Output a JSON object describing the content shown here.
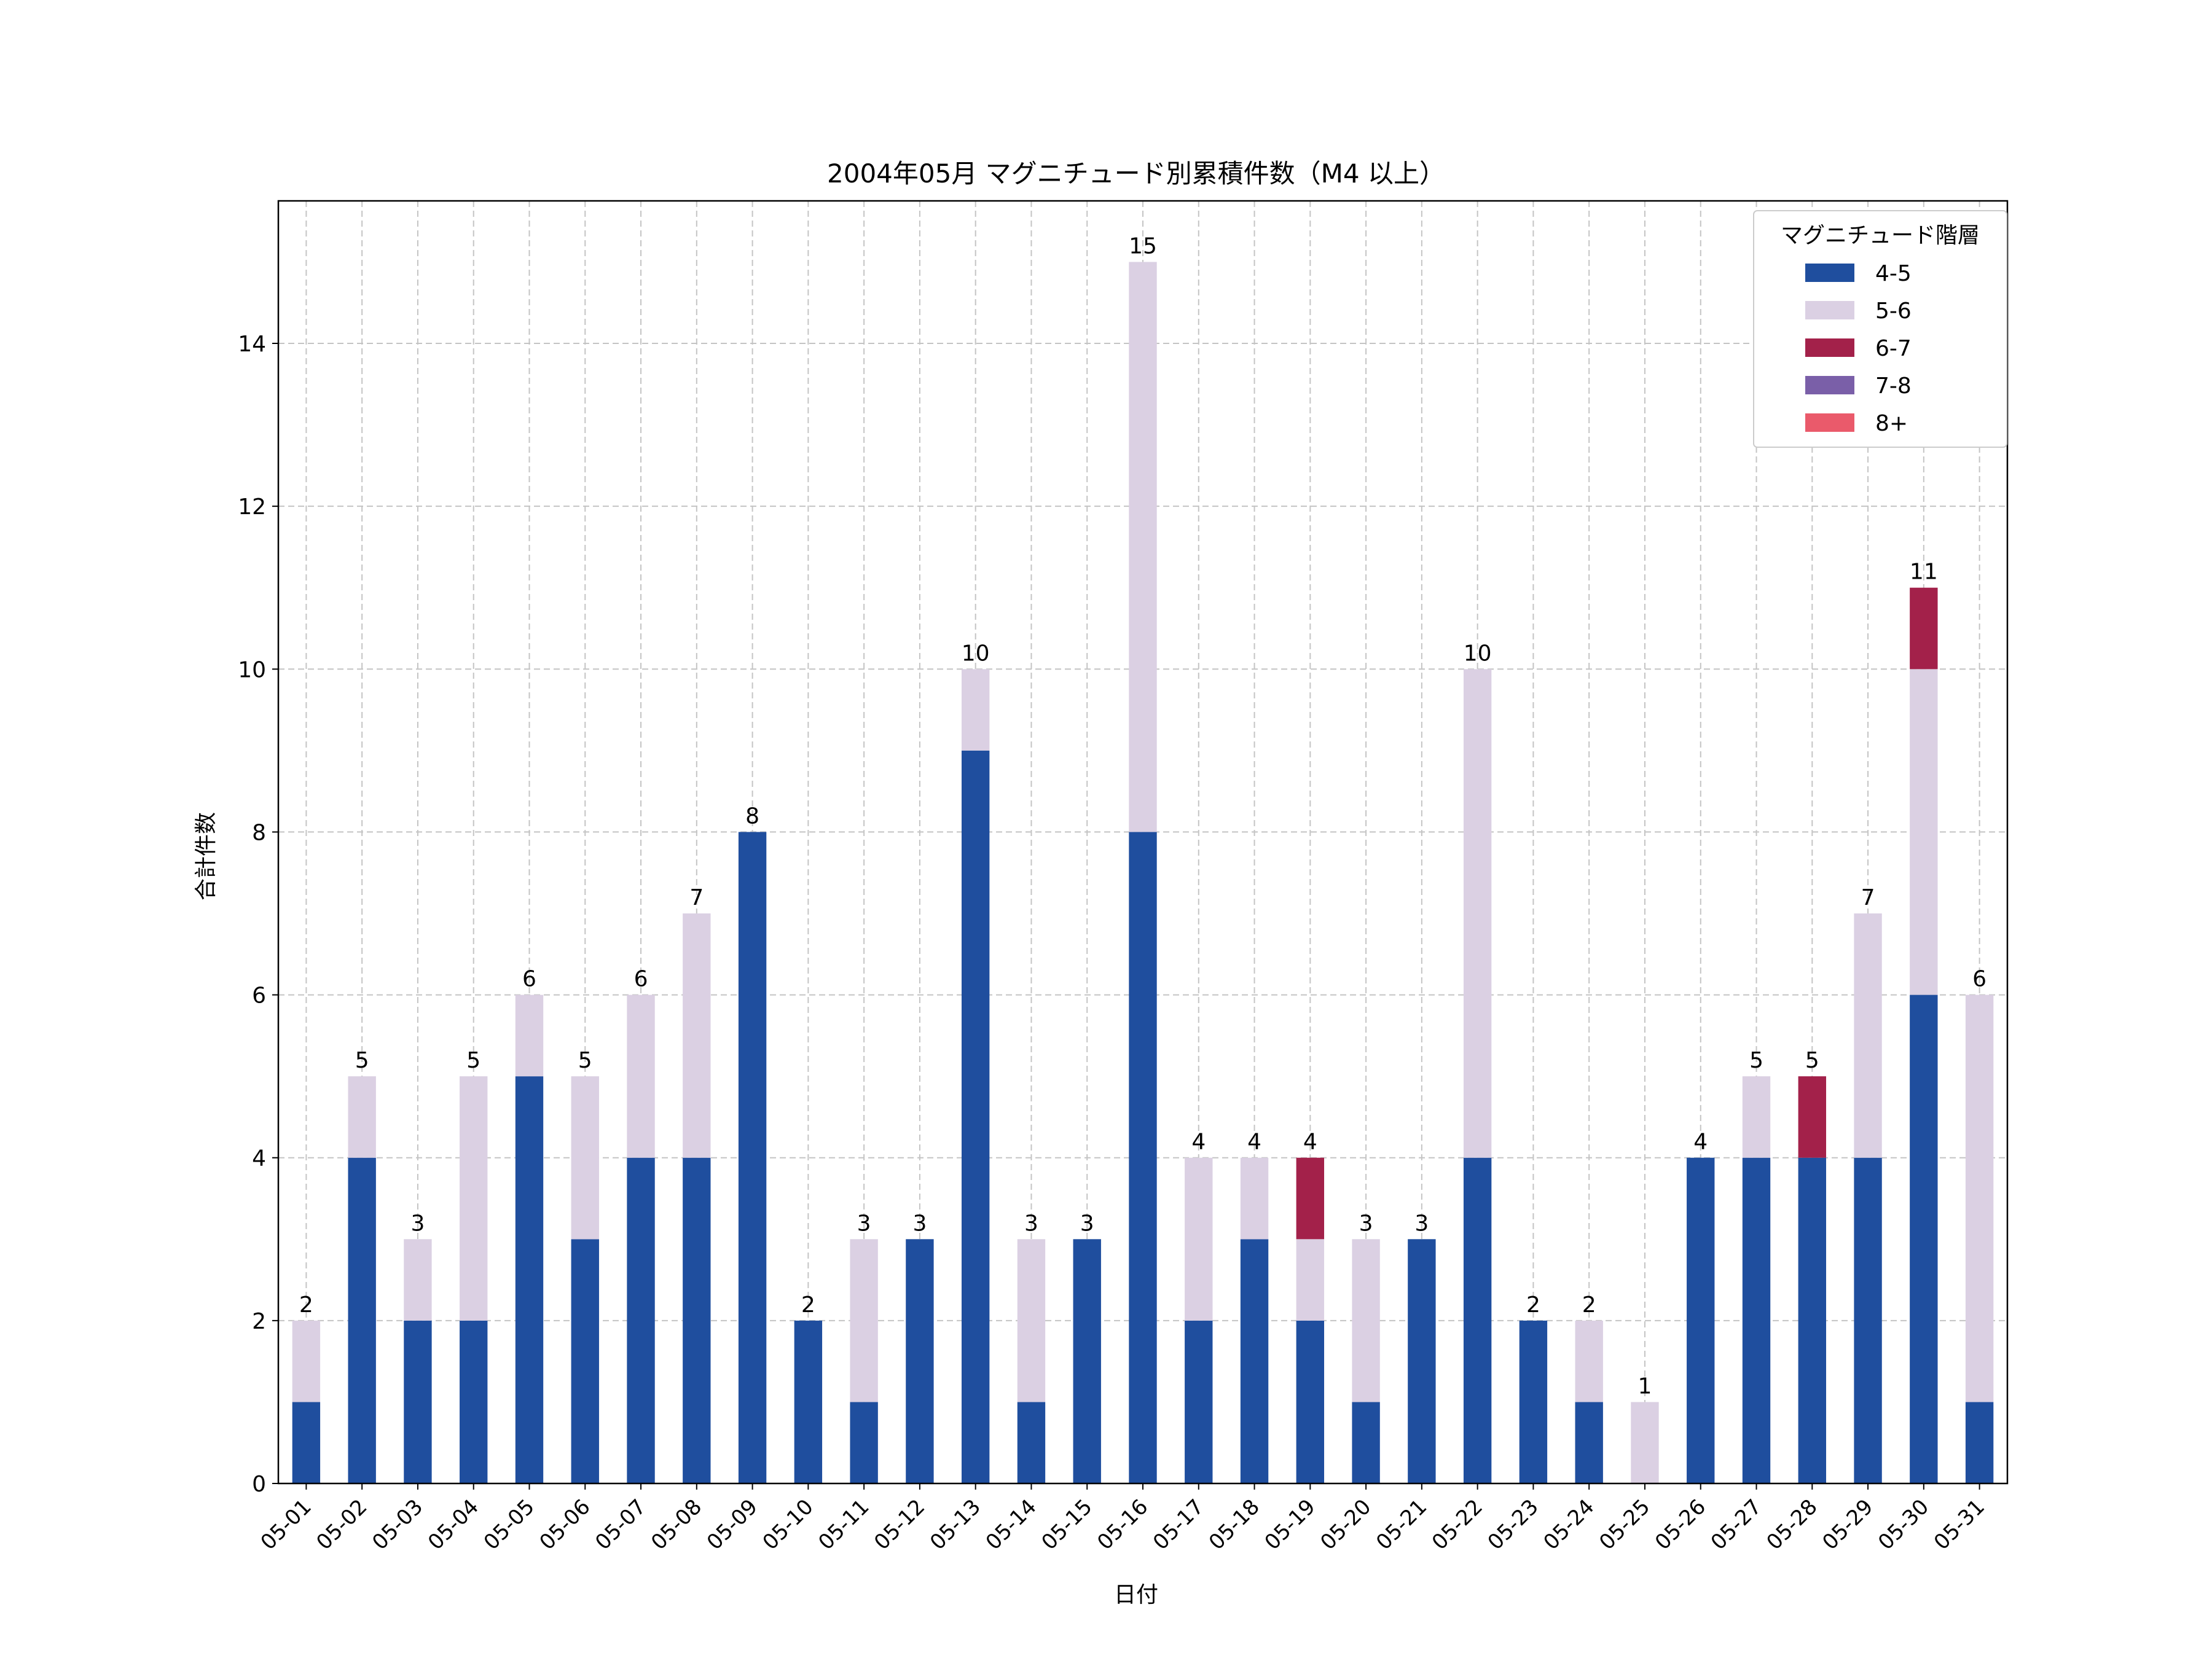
{
  "chart_data": {
    "type": "bar",
    "stacked": true,
    "title": "2004年05月 マグニチュード別累積件数（M4 以上）",
    "xlabel": "日付",
    "ylabel": "合計件数",
    "ylim": [
      0,
      15.75
    ],
    "yticks": [
      0,
      2,
      4,
      6,
      8,
      10,
      12,
      14
    ],
    "grid": true,
    "legend": {
      "title": "マグニチュード階層",
      "placement": "top-right"
    },
    "categories": [
      "05-01",
      "05-02",
      "05-03",
      "05-04",
      "05-05",
      "05-06",
      "05-07",
      "05-08",
      "05-09",
      "05-10",
      "05-11",
      "05-12",
      "05-13",
      "05-14",
      "05-15",
      "05-16",
      "05-17",
      "05-18",
      "05-19",
      "05-20",
      "05-21",
      "05-22",
      "05-23",
      "05-24",
      "05-25",
      "05-26",
      "05-27",
      "05-28",
      "05-29",
      "05-30",
      "05-31"
    ],
    "series": [
      {
        "name": "4-5",
        "color": "#1f4e9e",
        "values": [
          1,
          4,
          2,
          2,
          5,
          3,
          4,
          4,
          8,
          2,
          1,
          3,
          9,
          1,
          3,
          8,
          2,
          3,
          2,
          1,
          3,
          4,
          2,
          1,
          0,
          4,
          4,
          4,
          4,
          6,
          1
        ]
      },
      {
        "name": "5-6",
        "color": "#dbd0e3",
        "values": [
          1,
          1,
          1,
          3,
          1,
          2,
          2,
          3,
          0,
          0,
          2,
          0,
          1,
          2,
          0,
          7,
          2,
          1,
          1,
          2,
          0,
          6,
          0,
          1,
          1,
          0,
          1,
          0,
          3,
          4,
          5
        ]
      },
      {
        "name": "6-7",
        "color": "#a3214a",
        "values": [
          0,
          0,
          0,
          0,
          0,
          0,
          0,
          0,
          0,
          0,
          0,
          0,
          0,
          0,
          0,
          0,
          0,
          0,
          1,
          0,
          0,
          0,
          0,
          0,
          0,
          0,
          0,
          1,
          0,
          1,
          0
        ]
      },
      {
        "name": "7-8",
        "color": "#7a5fa8",
        "values": [
          0,
          0,
          0,
          0,
          0,
          0,
          0,
          0,
          0,
          0,
          0,
          0,
          0,
          0,
          0,
          0,
          0,
          0,
          0,
          0,
          0,
          0,
          0,
          0,
          0,
          0,
          0,
          0,
          0,
          0,
          0
        ]
      },
      {
        "name": "8+",
        "color": "#ea5a6b",
        "values": [
          0,
          0,
          0,
          0,
          0,
          0,
          0,
          0,
          0,
          0,
          0,
          0,
          0,
          0,
          0,
          0,
          0,
          0,
          0,
          0,
          0,
          0,
          0,
          0,
          0,
          0,
          0,
          0,
          0,
          0,
          0
        ]
      }
    ],
    "totals": [
      "2",
      "5",
      "3",
      "5",
      "6",
      "5",
      "6",
      "7",
      "8",
      "2",
      "3",
      "3",
      "10",
      "3",
      "3",
      "15",
      "4",
      "4",
      "4",
      "3",
      "3",
      "10",
      "2",
      "2",
      "1",
      "4",
      "5",
      "5",
      "7",
      "11",
      "6"
    ]
  }
}
